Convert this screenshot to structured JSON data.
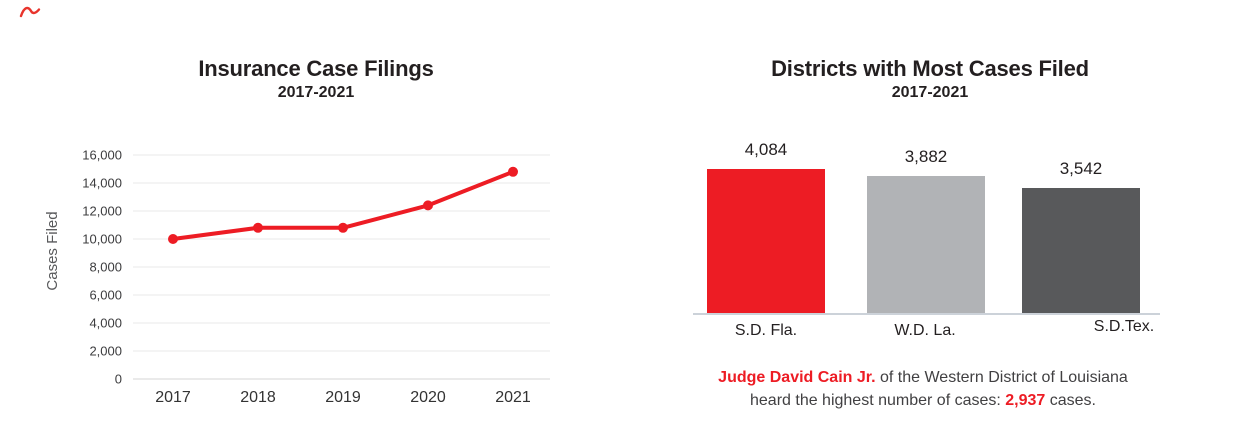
{
  "colors": {
    "accent_red": "#ed1c24",
    "bar_light_gray": "#b1b3b6",
    "bar_dark_gray": "#58595b",
    "text_dark": "#231f20",
    "text_gray": "#414042",
    "grid": "#e9e9e9",
    "baseline": "#ccd2d9",
    "pen_mark": "#e8342c"
  },
  "chart_data": [
    {
      "type": "line",
      "title": "Insurance Case Filings",
      "subtitle": "2017-2021",
      "ylabel": "Cases Filed",
      "xlabel": "",
      "x": [
        "2017",
        "2018",
        "2019",
        "2020",
        "2021"
      ],
      "values": [
        10000,
        10800,
        10800,
        12400,
        14800
      ],
      "ylim": [
        0,
        16000
      ],
      "ytick_interval": 2000,
      "ytick_labels": [
        "0",
        "2,000",
        "4,000",
        "6,000",
        "8,000",
        "10,000",
        "12,000",
        "14,000",
        "16,000"
      ],
      "grid": true,
      "legend": false,
      "line_color": "#ed1c24"
    },
    {
      "type": "bar",
      "title": "Districts with Most Cases Filed",
      "subtitle": "2017-2021",
      "categories": [
        "S.D. Fla.",
        "W.D. La.",
        "S.D.Tex."
      ],
      "values": [
        4084,
        3882,
        3542
      ],
      "value_labels": [
        "4,084",
        "3,882",
        "3,542"
      ],
      "bar_colors": [
        "#ed1c24",
        "#b1b3b6",
        "#58595b"
      ],
      "grid": false,
      "legend": false
    }
  ],
  "annotation": {
    "judge_name": "Judge David Cain Jr.",
    "line1_rest": " of the Western District of Louisiana",
    "line2_pre": "heard the highest number of cases: ",
    "cases_count": "2,937",
    "line2_post": " cases."
  }
}
